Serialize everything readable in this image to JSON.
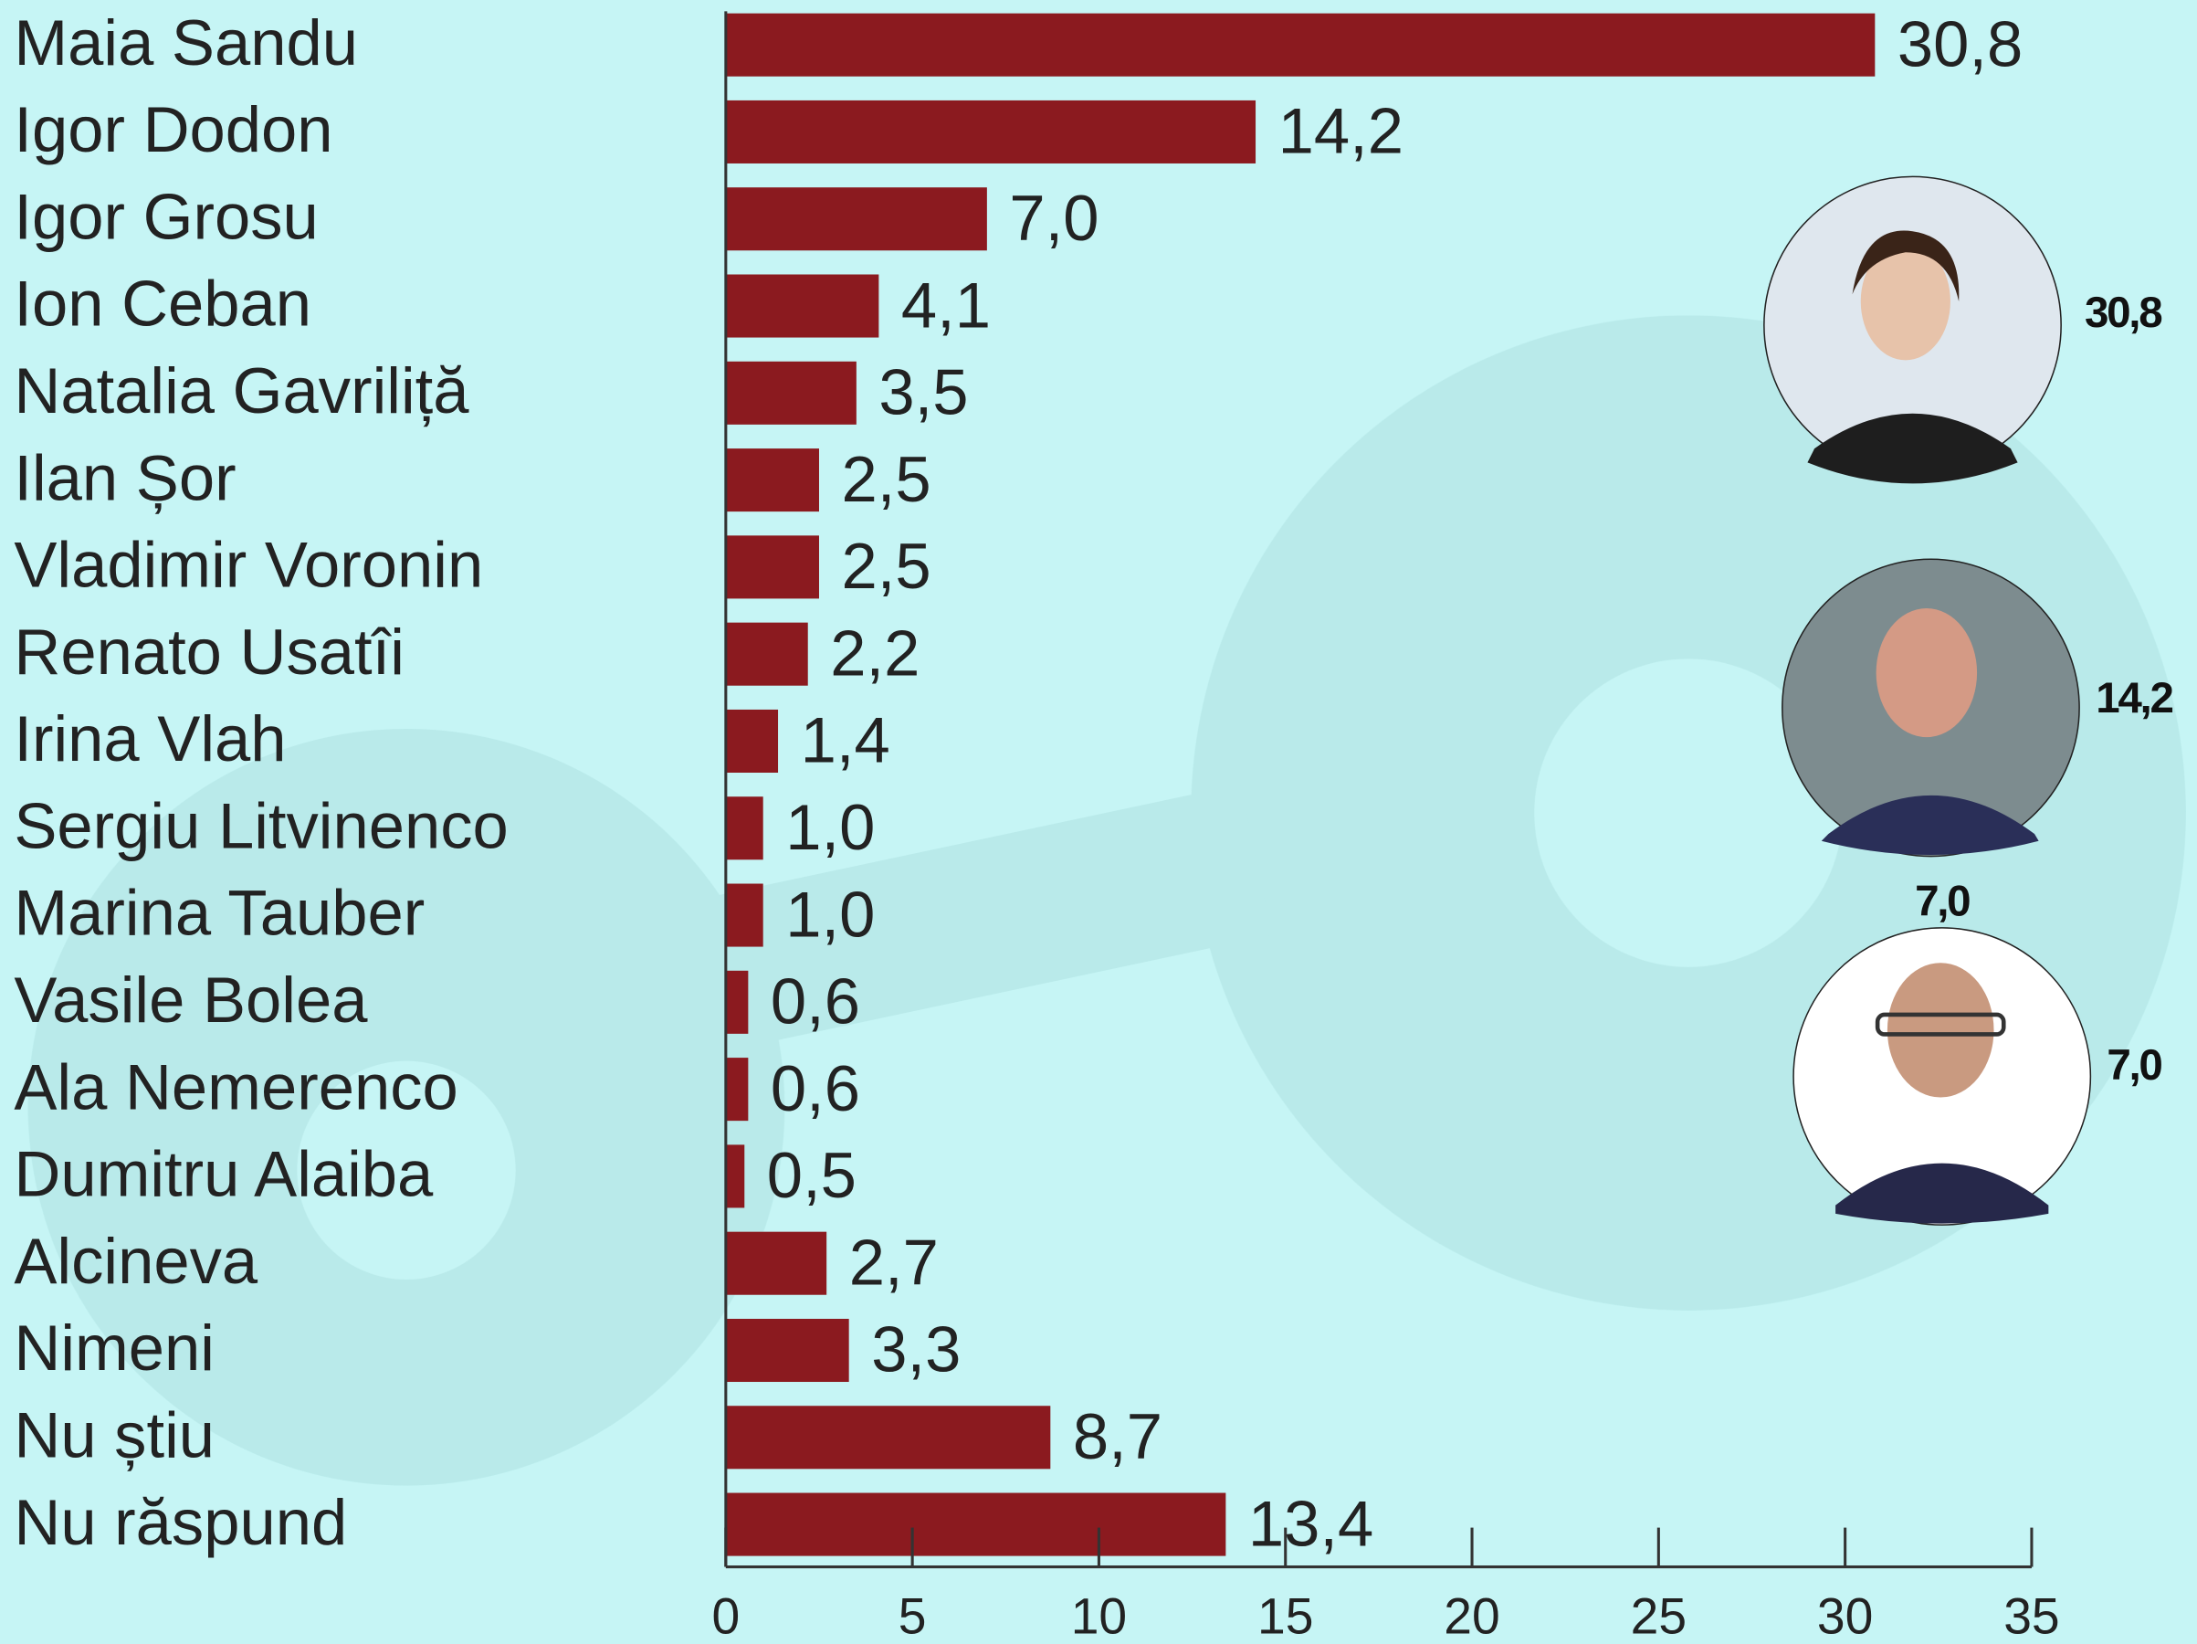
{
  "chart_data": {
    "type": "hbar",
    "categories": [
      "Maia Sandu",
      "Igor Dodon",
      "Igor Grosu",
      "Ion Ceban",
      "Natalia Gavriliță",
      "Ilan Șor",
      "Vladimir Voronin",
      "Renato Usatîi",
      "Irina Vlah",
      "Sergiu Litvinenco",
      "Marina Tauber",
      "Vasile Bolea",
      "Ala Nemerenco",
      "Dumitru Alaiba",
      "Alcineva",
      "Nimeni",
      "Nu știu",
      "Nu răspund"
    ],
    "values": [
      30.8,
      14.2,
      7.0,
      4.1,
      3.5,
      2.5,
      2.5,
      2.2,
      1.4,
      1.0,
      1.0,
      0.6,
      0.6,
      0.5,
      2.7,
      3.3,
      8.7,
      13.4
    ],
    "value_labels": [
      "30,8",
      "14,2",
      "7,0",
      "4,1",
      "3,5",
      "2,5",
      "2,5",
      "2,2",
      "1,4",
      "1,0",
      "1,0",
      "0,6",
      "0,6",
      "0,5",
      "2,7",
      "3,3",
      "8,7",
      "13,4"
    ],
    "color": "#8b1a1f",
    "xlim": [
      0,
      35
    ],
    "xticks": [
      0,
      5,
      10,
      15,
      20,
      25,
      30,
      35
    ],
    "annotations": [
      "30,8",
      "14,2",
      "7,0",
      "7,0"
    ]
  }
}
